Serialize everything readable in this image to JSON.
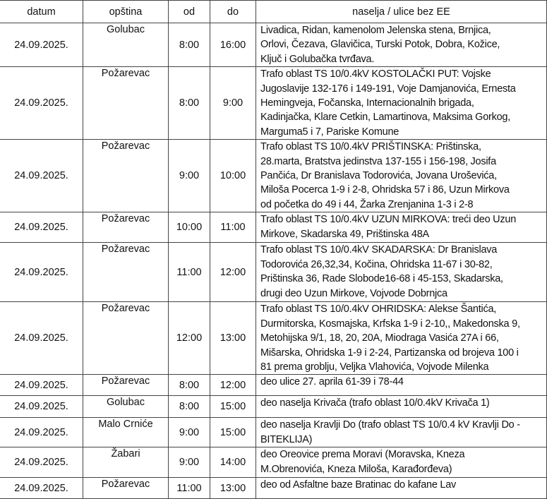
{
  "headers": [
    "datum",
    "opština",
    "od",
    "do",
    "naselja / ulice bez EE"
  ],
  "rows": [
    {
      "datum": "24.09.2025.",
      "opstina": "Golubac",
      "od": "8:00",
      "do": "16:00",
      "naselja": "Livadica,  Ridan, kamenolom Jelenska stena, Brnjica,\nOrlovi, Čezava, Glavičica, Turski Potok, Dobra, Kožice,\nKljuč i Golubačka tvrđava."
    },
    {
      "datum": "24.09.2025.",
      "opstina": "Požarevac",
      "od": "8:00",
      "do": "9:00",
      "naselja": "Trafo oblast TS 10/0.4kV KOSTOLAČKI PUT: Vojske\nJugoslavije 132-176 i 149-191, Voje Damjanovića, Ernesta\nHemingveja, Fočanska, Internacionalnih brigada,\nKadinjačka, Klare Cetkin, Lamartinova, Maksima Gorkog,\nMarguma5 i 7, Pariske Komune"
    },
    {
      "datum": "24.09.2025.",
      "opstina": "Požarevac",
      "od": "9:00",
      "do": "10:00",
      "naselja": "Trafo oblast TS 10/0.4kV PRIŠTINSKA: Prištinska,\n28.marta,  Bratstva jedinstva 137-155  i 156-198, Josifa\nPančića, Dr Branislava Todorovića, Jovana Uroševića,\nMiloša Pocerca 1-9 i  2-8, Ohridska 57 i 86, Uzun Mirkova\nod  početka do 49 i 44, Žarka Zrenjanina 1-3 i 2-8"
    },
    {
      "datum": "24.09.2025.",
      "opstina": "Požarevac",
      "od": "10:00",
      "do": "11:00",
      "naselja": "Trafo oblast TS 10/0.4kV UZUN MIRKOVA: treći  deo Uzun\nMirkove, Skadarska 49, Prištinska 48A"
    },
    {
      "datum": "24.09.2025.",
      "opstina": "Požarevac",
      "od": "11:00",
      "do": "12:00",
      "naselja": "Trafo oblast TS 10/0.4kV SKADARSKA: Dr Branislava\nTodorovića 26,32,34, Kočina, Ohridska 11-67 i 30-82,\nPrištinska 36, Rade Slobode16-68 i 45-153, Skadarska,\ndrugi deo Uzun Mirkove, Vojvode Dobrnjca"
    },
    {
      "datum": "24.09.2025.",
      "opstina": "Požarevac",
      "od": "12:00",
      "do": "13:00",
      "naselja": "Trafo oblast TS 10/0.4kV OHRIDSKA: Alekse Šantića,\nDurmitorska, Kosmajska, Krfska 1-9 i 2-10,, Makedonska 9,\nMetohijska 9/1, 18, 20, 20A, Miodraga Vasića 27A i 66,\nMišarska, Ohridska 1-9 i 2-24, Partizanska od brojeva 100 i\n81 prema groblju, Veljka Vlahovića, Vojvode Milenka"
    },
    {
      "datum": "24.09.2025.",
      "opstina": "Požarevac",
      "od": "8:00",
      "do": "12:00",
      "naselja": "deo ulice 27. aprila 61-39 i 78-44"
    },
    {
      "datum": "24.09.2025.",
      "opstina": "Golubac",
      "od": "8:00",
      "do": "15:00",
      "naselja": "deo naselja Krivača (trafo oblast 10/0.4kV Krivača 1)"
    },
    {
      "datum": "24.09.2025.",
      "opstina": "Malo Crniće",
      "od": "9:00",
      "do": "15:00",
      "naselja": "deo naselja Kravlji Do (trafo oblast TS 10/0.4 kV Kravlji Do -\nBITEKLIJA)"
    },
    {
      "datum": "24.09.2025.",
      "opstina": "Žabari",
      "od": "9:00",
      "do": "14:00",
      "naselja": "deo Oreovice prema Moravi (Moravska, Kneza\nM.Obrenovića, Kneza Miloša, Karađorđeva)"
    },
    {
      "datum": "24.09.2025.",
      "opstina": "Požarevac",
      "od": "11:00",
      "do": "13:00",
      "naselja": "deo od Asfaltne baze Bratinac do kafane Lav"
    }
  ]
}
